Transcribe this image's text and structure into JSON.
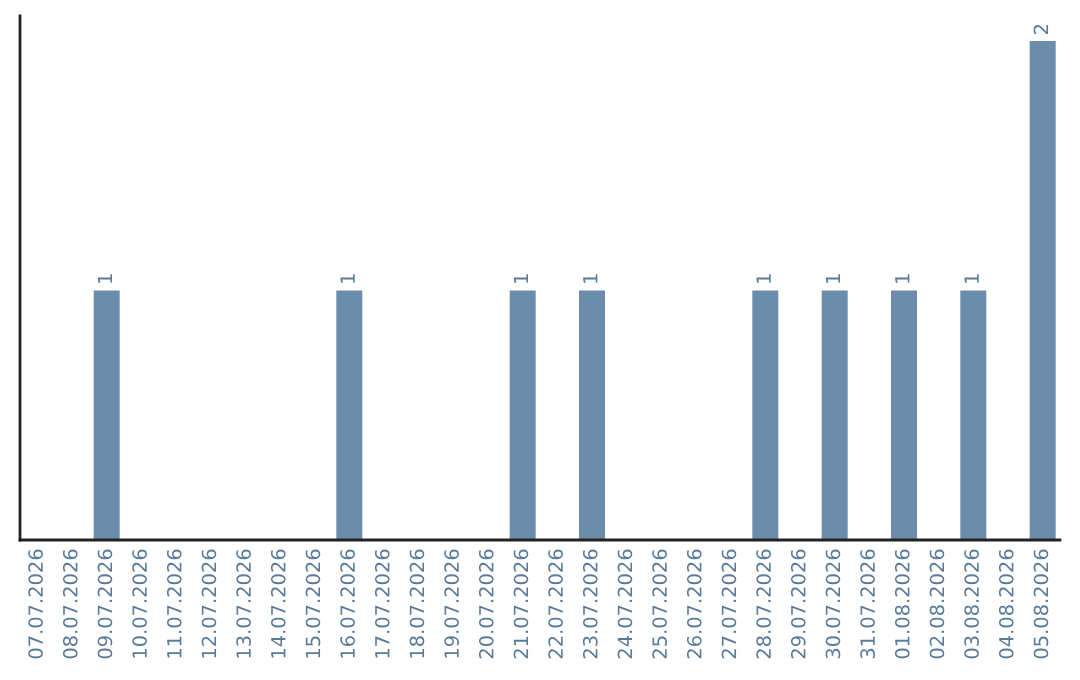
{
  "chart_data": {
    "type": "bar",
    "categories": [
      "07.07.2026",
      "08.07.2026",
      "09.07.2026",
      "10.07.2026",
      "11.07.2026",
      "12.07.2026",
      "13.07.2026",
      "14.07.2026",
      "15.07.2026",
      "16.07.2026",
      "17.07.2026",
      "18.07.2026",
      "19.07.2026",
      "20.07.2026",
      "21.07.2026",
      "22.07.2026",
      "23.07.2026",
      "24.07.2026",
      "25.07.2026",
      "26.07.2026",
      "27.07.2026",
      "28.07.2026",
      "29.07.2026",
      "30.07.2026",
      "31.07.2026",
      "01.08.2026",
      "02.08.2026",
      "03.08.2026",
      "04.08.2026",
      "05.08.2026"
    ],
    "values": [
      0,
      0,
      1,
      0,
      0,
      0,
      0,
      0,
      0,
      1,
      0,
      0,
      0,
      0,
      1,
      0,
      1,
      0,
      0,
      0,
      0,
      1,
      0,
      1,
      0,
      1,
      0,
      1,
      0,
      2
    ],
    "value_labels": [
      null,
      null,
      "1",
      null,
      null,
      null,
      null,
      null,
      null,
      "1",
      null,
      null,
      null,
      null,
      "1",
      null,
      "1",
      null,
      null,
      null,
      null,
      "1",
      null,
      "1",
      null,
      "1",
      null,
      "1",
      null,
      "2"
    ],
    "color": "#6b8cab",
    "ylim": [
      0,
      2.1
    ],
    "tick_labels": "x",
    "grid": false,
    "legend": false
  }
}
